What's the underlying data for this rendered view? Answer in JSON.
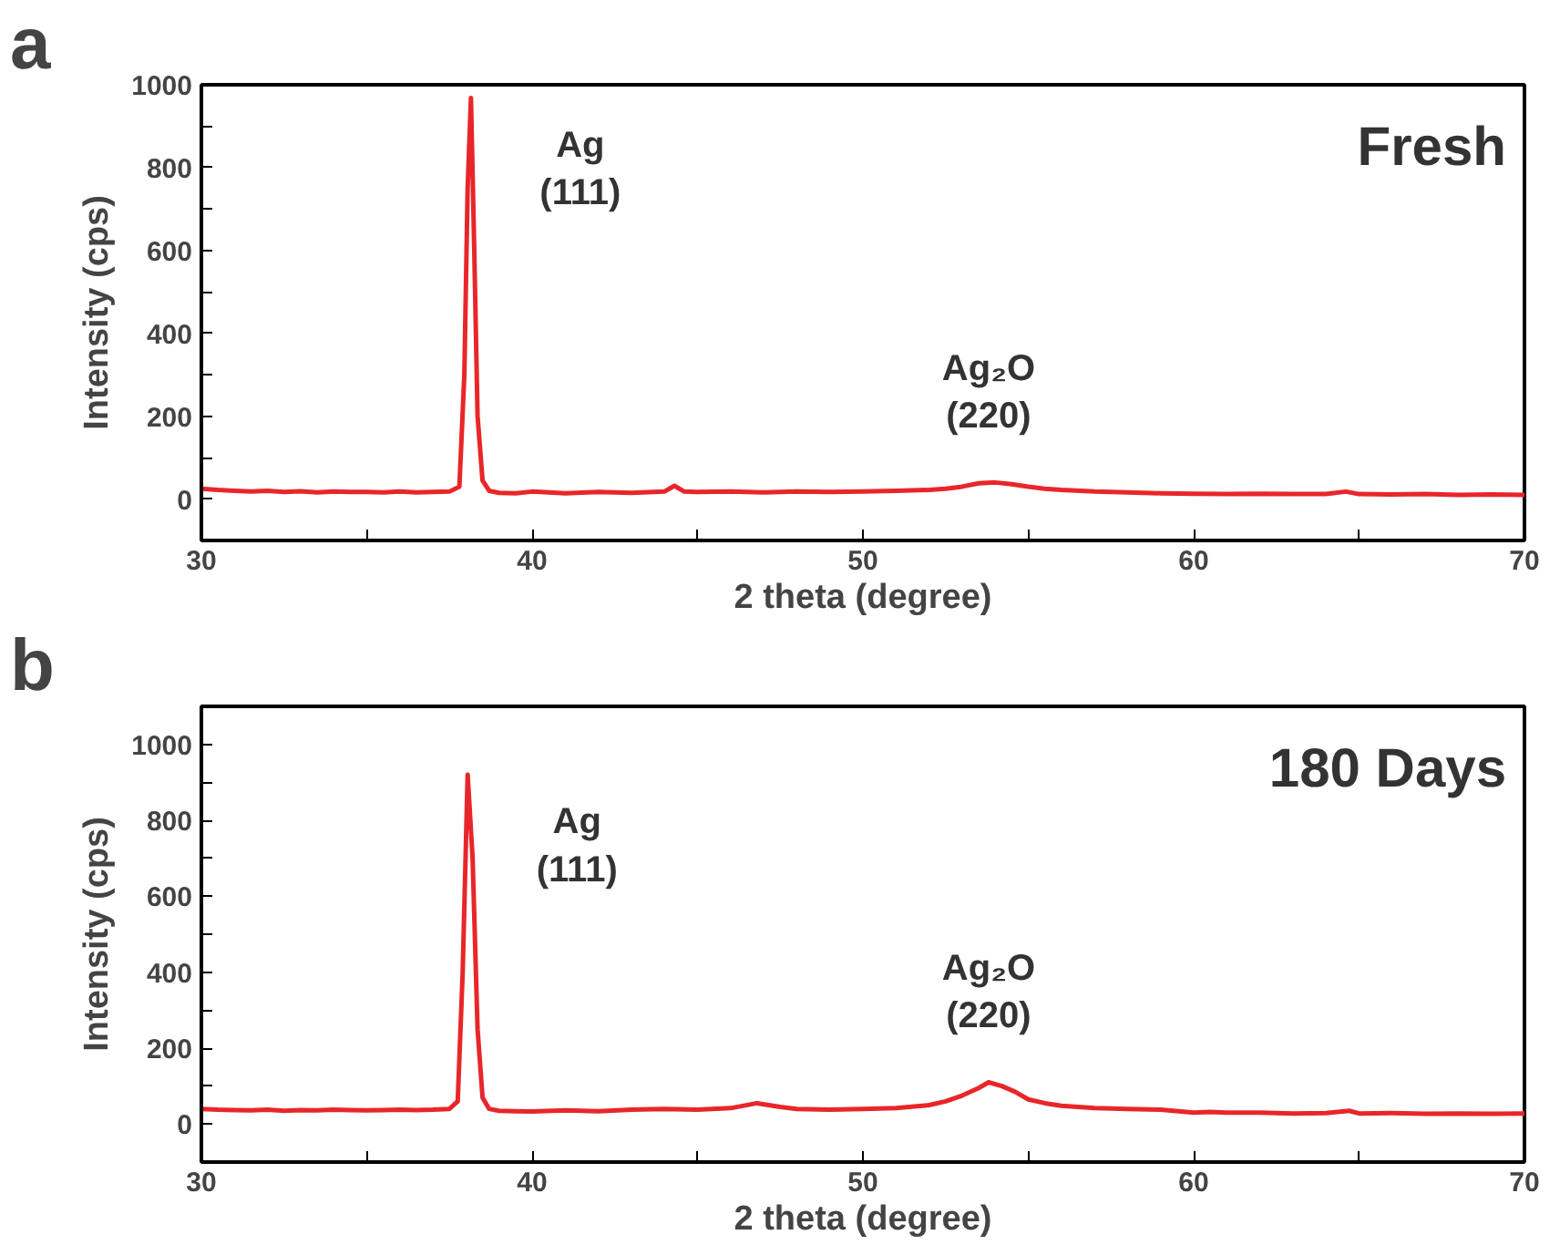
{
  "chart_data": [
    {
      "type": "line",
      "title": "Fresh",
      "xlabel": "2 theta (degree)",
      "ylabel": "Intensity (cps)",
      "annotations": [
        "a",
        {
          "text": "Ag\n(111)",
          "x": 38.15,
          "y": 968
        },
        {
          "text": "Ag₂O\n(220)",
          "x": 53.8,
          "y": 40
        }
      ],
      "x": [
        30,
        30.5,
        31,
        31.5,
        32,
        32.5,
        33,
        33.5,
        34,
        34.5,
        35,
        35.5,
        36,
        36.5,
        37,
        37.5,
        37.8,
        37.95,
        38.05,
        38.15,
        38.25,
        38.35,
        38.5,
        38.7,
        39,
        39.5,
        40,
        41,
        42,
        43,
        44,
        44.3,
        44.6,
        45,
        46,
        47,
        48,
        49,
        50,
        51,
        52,
        52.5,
        53,
        53.5,
        54,
        54.5,
        55,
        55.5,
        56,
        57,
        58,
        59,
        60,
        61,
        62,
        63,
        64,
        64.6,
        65,
        66,
        67,
        68,
        69,
        70
      ],
      "series": [
        {
          "color": "#e8262a",
          "values": [
            25,
            22,
            20,
            18,
            20,
            17,
            19,
            16,
            18,
            17,
            17,
            16,
            18,
            16,
            17,
            18,
            30,
            300,
            750,
            968,
            600,
            200,
            45,
            20,
            15,
            14,
            18,
            14,
            17,
            15,
            18,
            32,
            18,
            17,
            18,
            16,
            18,
            17,
            18,
            20,
            22,
            25,
            30,
            38,
            40,
            36,
            30,
            25,
            22,
            18,
            16,
            14,
            13,
            12,
            13,
            12,
            12,
            18,
            12,
            11,
            12,
            10,
            11,
            10
          ]
        }
      ],
      "xlim": [
        30,
        70
      ],
      "ylim": [
        -100,
        1000
      ],
      "xticks": [
        30,
        {
          "value": 35,
          "label": null
        },
        40,
        {
          "value": 45,
          "label": null
        },
        50,
        {
          "value": 55,
          "label": null
        },
        60,
        {
          "value": 65,
          "label": null
        },
        70
      ],
      "yticks": [
        0,
        {
          "value": 100,
          "label": null
        },
        200,
        {
          "value": 300,
          "label": null
        },
        400,
        {
          "value": 500,
          "label": null
        },
        600,
        {
          "value": 700,
          "label": null
        },
        800,
        {
          "value": 900,
          "label": null
        },
        1000
      ],
      "grid": false,
      "marker": "none",
      "line_style": "solid"
    },
    {
      "type": "line",
      "title": "180 Days",
      "xlabel": "2 theta (degree)",
      "ylabel": "Intensity (cps)",
      "annotations": [
        "b",
        {
          "text": "Ag\n(111)",
          "x": 38.05,
          "y": 920
        },
        {
          "text": "Ag₂O\n(220)",
          "x": 53.8,
          "y": 110
        }
      ],
      "x": [
        30,
        30.5,
        31,
        31.5,
        32,
        32.5,
        33,
        33.5,
        34,
        34.5,
        35,
        35.5,
        36,
        36.5,
        37,
        37.5,
        37.75,
        37.9,
        38.05,
        38.2,
        38.35,
        38.5,
        38.7,
        39,
        39.5,
        40,
        41,
        42,
        43,
        44,
        45,
        46,
        46.8,
        47.5,
        48,
        49,
        50,
        51,
        52,
        52.5,
        53,
        53.5,
        53.8,
        54.2,
        54.6,
        55,
        55.5,
        56,
        57,
        58,
        59,
        60,
        60.5,
        61,
        62,
        63,
        64,
        64.7,
        65,
        66,
        67,
        68,
        69,
        70
      ],
      "series": [
        {
          "color": "#e8262a",
          "values": [
            40,
            38,
            37,
            36,
            38,
            35,
            37,
            36,
            38,
            37,
            36,
            37,
            38,
            37,
            38,
            40,
            60,
            400,
            920,
            700,
            250,
            70,
            40,
            35,
            34,
            33,
            36,
            34,
            38,
            40,
            38,
            42,
            55,
            45,
            40,
            38,
            40,
            42,
            50,
            60,
            75,
            95,
            110,
            100,
            85,
            65,
            55,
            48,
            42,
            40,
            38,
            30,
            32,
            30,
            30,
            28,
            29,
            35,
            28,
            29,
            27,
            28,
            27,
            28
          ]
        }
      ],
      "xlim": [
        30,
        70
      ],
      "ylim": [
        -100,
        1100
      ],
      "xticks": [
        30,
        {
          "value": 35,
          "label": null
        },
        40,
        {
          "value": 45,
          "label": null
        },
        50,
        {
          "value": 55,
          "label": null
        },
        60,
        {
          "value": 65,
          "label": null
        },
        70
      ],
      "yticks": [
        0,
        {
          "value": 100,
          "label": null
        },
        200,
        {
          "value": 300,
          "label": null
        },
        400,
        {
          "value": 500,
          "label": null
        },
        600,
        {
          "value": 700,
          "label": null
        },
        800,
        {
          "value": 900,
          "label": null
        },
        1000
      ],
      "grid": false,
      "marker": "none",
      "line_style": "solid"
    }
  ]
}
